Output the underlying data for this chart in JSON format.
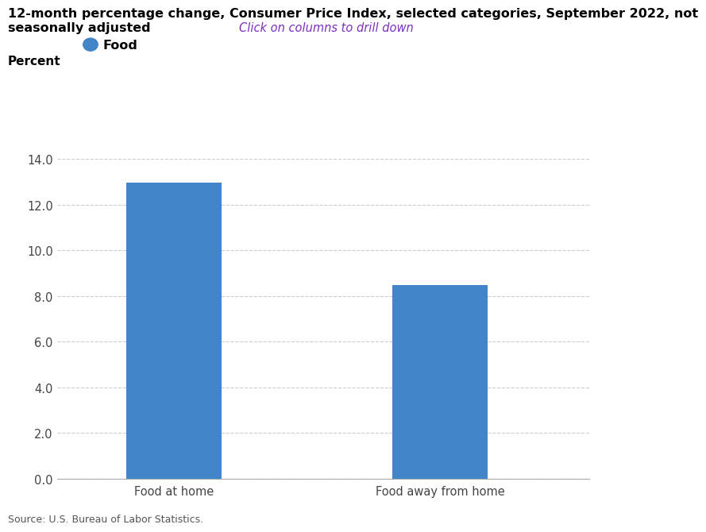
{
  "title_line1": "12-month percentage change, Consumer Price Index, selected categories, September 2022, not",
  "title_line2": "seasonally adjusted",
  "subtitle": "Click on columns to drill down",
  "subtitle_color": "#7B2FBE",
  "ylabel": "Percent",
  "legend_label": "Food",
  "legend_dot_color": "#4285C8",
  "categories": [
    "Food at home",
    "Food away from home"
  ],
  "values": [
    12.97,
    8.5
  ],
  "bar_color": "#4285C8",
  "ylim": [
    0,
    14.0
  ],
  "yticks": [
    0.0,
    2.0,
    4.0,
    6.0,
    8.0,
    10.0,
    12.0,
    14.0
  ],
  "grid_color": "#cccccc",
  "background_color": "#ffffff",
  "source_text": "Source: U.S. Bureau of Labor Statistics.",
  "bar_width": 0.18,
  "title_fontsize": 11.5,
  "subtitle_fontsize": 10.5,
  "ylabel_fontsize": 11,
  "tick_fontsize": 10.5,
  "legend_fontsize": 11.5,
  "source_fontsize": 9,
  "x_positions": [
    0.22,
    0.72
  ]
}
